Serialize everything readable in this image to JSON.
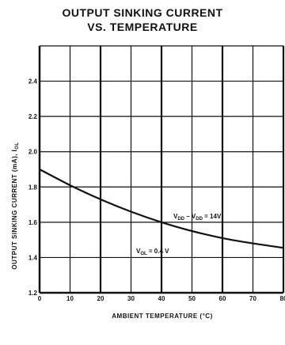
{
  "chart_data": {
    "type": "line",
    "title_line1": "OUTPUT SINKING CURRENT",
    "title_line2": "VS. TEMPERATURE",
    "xlabel": "AMBIENT TEMPERATURE (°C)",
    "ylabel": "OUTPUT SINKING CURRENT (mA), I",
    "ylabel_sub": "OL",
    "xlim": [
      0,
      80
    ],
    "ylim": [
      1.2,
      2.6
    ],
    "xticks": [
      "0",
      "10",
      "20",
      "30",
      "40",
      "50",
      "60",
      "70",
      "80"
    ],
    "yticks": [
      "1.2",
      "1.4",
      "1.6",
      "1.8",
      "2.0",
      "2.2",
      "2.4"
    ],
    "grid": true,
    "series": [
      {
        "x": [
          0,
          10,
          20,
          30,
          40,
          50,
          60,
          70,
          80
        ],
        "values": [
          1.9,
          1.81,
          1.73,
          1.66,
          1.6,
          1.55,
          1.51,
          1.48,
          1.455
        ]
      }
    ],
    "annotations": [
      {
        "text": "V",
        "sub": "DD",
        "rest": " – V",
        "sub2": "DD",
        "tail": " = 14V"
      },
      {
        "text": "V",
        "sub": "OL",
        "rest": " = 0.4 V"
      }
    ]
  }
}
